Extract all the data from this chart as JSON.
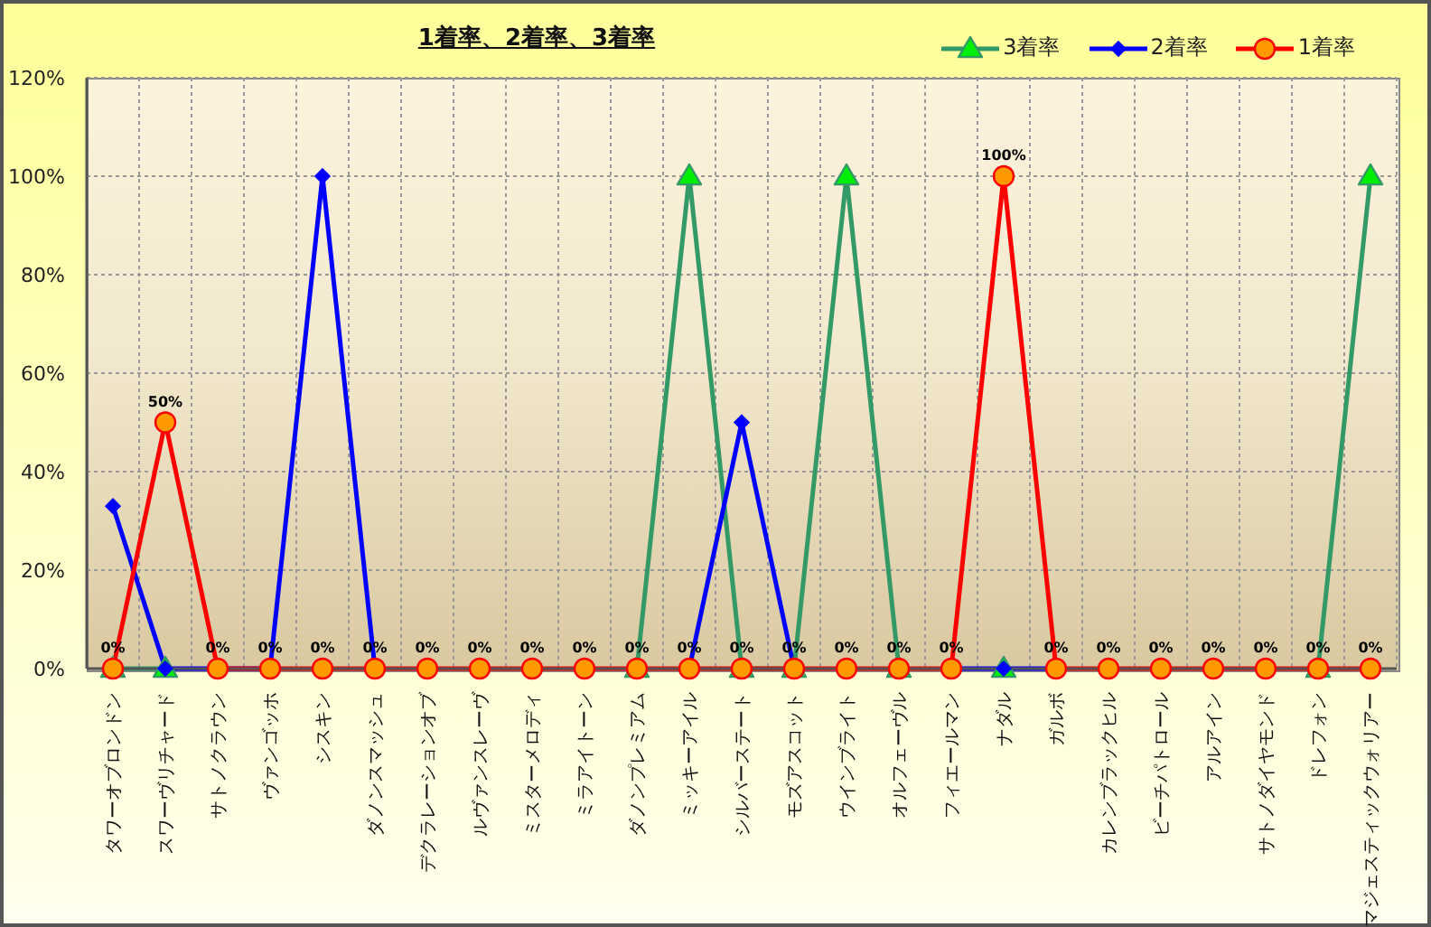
{
  "chart_data": {
    "type": "line",
    "title": "1着率、2着率、3着率",
    "categories": [
      "タワーオブロンドン",
      "スワーヴリチャード",
      "サトノクラウン",
      "ヴァンゴッホ",
      "シスキン",
      "ダノンスマッシュ",
      "デクラレーションオブ",
      "ルヴァンスレーヴ",
      "ミスターメロディ",
      "ミラアイトーン",
      "ダノンプレミアム",
      "ミッキーアイル",
      "シルバーステート",
      "モズアスコット",
      "ウインブライト",
      "オルフェーヴル",
      "フィエールマン",
      "ナダル",
      "ガルボ",
      "カレンブラックヒル",
      "ビーチパトロール",
      "アルアイン",
      "サトノダイヤモンド",
      "ドレフォン",
      "マジェスティックウォリアー"
    ],
    "series": [
      {
        "name": "3着率",
        "color": "#339966",
        "marker": "triangle",
        "values": [
          0,
          0,
          null,
          null,
          null,
          null,
          null,
          null,
          null,
          null,
          0,
          100,
          0,
          0,
          100,
          0,
          null,
          0,
          null,
          null,
          null,
          null,
          null,
          0,
          100
        ]
      },
      {
        "name": "2着率",
        "color": "#0000ff",
        "marker": "diamond",
        "values": [
          33,
          0,
          0,
          0,
          100,
          0,
          null,
          null,
          null,
          null,
          null,
          0,
          50,
          0,
          null,
          null,
          0,
          0,
          0,
          null,
          null,
          null,
          null,
          null,
          null
        ]
      },
      {
        "name": "1着率",
        "color": "#ff0000",
        "marker": "circle",
        "values": [
          0,
          50,
          0,
          0,
          0,
          0,
          0,
          0,
          0,
          0,
          0,
          0,
          0,
          0,
          0,
          0,
          0,
          100,
          0,
          0,
          0,
          0,
          0,
          0,
          0
        ],
        "value_labels": [
          "0%",
          "50%",
          "0%",
          "0%",
          "0%",
          "0%",
          "0%",
          "0%",
          "0%",
          "0%",
          "0%",
          "0%",
          "0%",
          "0%",
          "0%",
          "0%",
          "0%",
          "100%",
          "0%",
          "0%",
          "0%",
          "0%",
          "0%",
          "0%",
          "0%"
        ]
      }
    ],
    "ylim": [
      0,
      120
    ],
    "yticks": [
      {
        "value": 0,
        "label": "0%"
      },
      {
        "value": 20,
        "label": "20%"
      },
      {
        "value": 40,
        "label": "40%"
      },
      {
        "value": 60,
        "label": "60%"
      },
      {
        "value": 80,
        "label": "80%"
      },
      {
        "value": 100,
        "label": "100%"
      },
      {
        "value": 120,
        "label": "120%"
      }
    ],
    "grid": true,
    "legend": "top right",
    "line_style": "solid"
  }
}
